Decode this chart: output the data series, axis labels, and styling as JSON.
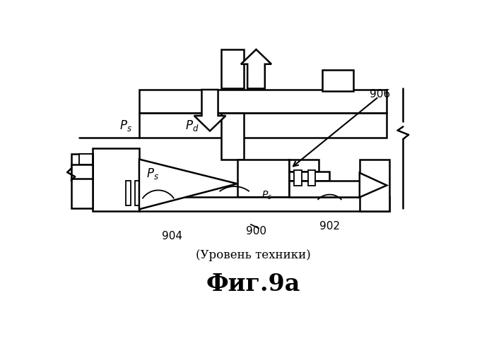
{
  "title": "Фиг.9а",
  "subtitle": "(Уровень техники)",
  "bg_color": "#ffffff",
  "line_color": "#000000",
  "figsize": [
    6.99,
    5.0
  ],
  "dpi": 100
}
